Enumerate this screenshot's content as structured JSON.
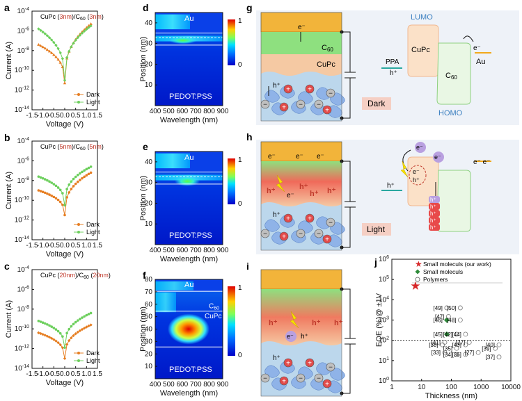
{
  "panel_labels": [
    "a",
    "b",
    "c",
    "d",
    "e",
    "f",
    "g",
    "h",
    "i",
    "j"
  ],
  "iv_panels": [
    {
      "id": "a",
      "title_pre": "CuPc (",
      "t1": "3nm",
      "title_mid": ")/C",
      "title_sub": "60",
      "title_mid2": " (",
      "t2": "3nm",
      "title_post": ")",
      "dark_min_log": -11.3,
      "dark_left_log": -7.4,
      "dark_right_log": -5.3,
      "light_min_log": -11.0,
      "light_left_log": -5.8,
      "light_right_log": -5.5
    },
    {
      "id": "b",
      "title_pre": "CuPc (",
      "t1": "5nm",
      "title_mid": ")/C",
      "title_sub": "60",
      "title_mid2": " (",
      "t2": "5nm",
      "title_post": ")",
      "dark_min_log": -11.5,
      "dark_left_log": -9.0,
      "dark_right_log": -7.2,
      "light_min_log": -10.5,
      "light_left_log": -7.6,
      "light_right_log": -6.6
    },
    {
      "id": "c",
      "title_pre": "CuPc (",
      "t1": "20nm",
      "title_mid": ")/C",
      "title_sub": "60",
      "title_mid2": " (",
      "t2": "20nm",
      "title_post": ")",
      "dark_min_log": -13.0,
      "dark_left_log": -10.4,
      "dark_right_log": -9.6,
      "light_min_log": -11.9,
      "light_left_log": -9.2,
      "light_right_log": -8.4
    }
  ],
  "iv_axes": {
    "xlabel": "Voltage (V)",
    "ylabel": "Current (A)",
    "xlim": [
      -1.5,
      1.5
    ],
    "ylim_log": [
      -14,
      -4
    ],
    "xticks": [
      "-1.5",
      "-1.0",
      "-0.5",
      "0.0",
      "0.5",
      "1.0",
      "1.5"
    ],
    "yticks": [
      "-4",
      "-6",
      "-8",
      "-10",
      "-12",
      "-14"
    ],
    "ybase": "10"
  },
  "legend": {
    "dark": "Dark",
    "light": "Light"
  },
  "colors": {
    "dark": "#e67e22",
    "light": "#6ccf5c",
    "accent_red": "#c0392b",
    "c60": "#8ee07f",
    "cupc": "#f5c9a3",
    "gold": "#f2b43a",
    "pedot": "#bcd7ec",
    "energy_peach": "#fbe1c8",
    "energy_green": "#e9f7e4"
  },
  "field_panels": [
    {
      "id": "d",
      "ylim": [
        0,
        45
      ],
      "yticks": [
        "10",
        "20",
        "30",
        "40"
      ],
      "gold": "Au",
      "bottom": "PEDOT:PSS",
      "c60": "",
      "cupc": ""
    },
    {
      "id": "e",
      "ylim": [
        0,
        45
      ],
      "yticks": [
        "10",
        "20",
        "30",
        "40"
      ],
      "gold": "Au",
      "bottom": "PEDOT:PSS",
      "c60": "",
      "cupc": ""
    },
    {
      "id": "f",
      "ylim": [
        0,
        80
      ],
      "yticks": [
        "10",
        "20",
        "30",
        "40",
        "50",
        "60",
        "70",
        "80"
      ],
      "gold": "Au",
      "bottom": "PEDOT:PSS",
      "c60": "C",
      "c60_sub": "60",
      "cupc": "CuPc"
    }
  ],
  "field_axes": {
    "xlabel": "Wavelength (nm)",
    "ylabel": "Position (nm)",
    "xticks": [
      "400",
      "500",
      "600",
      "700",
      "800",
      "900"
    ],
    "cbar_top": "1",
    "cbar_bottom": "0"
  },
  "schematic": {
    "electron": "e⁻",
    "hole": "h⁺",
    "c60": "C",
    "c60_sub": "60",
    "cupc": "CuPc",
    "lumo": "LUMO",
    "homo": "HOMO",
    "ppa": "PPA",
    "au": "Au",
    "dark": "Dark",
    "light": "Light",
    "plus": "+",
    "minus": "−",
    "electron_pair": "e⁻ e⁻"
  },
  "chart_data": {
    "type": "scatter",
    "title": "",
    "xlabel": "Thickness (nm)",
    "ylabel": "EQE (%)@ ±1V",
    "xscale": "log",
    "yscale": "log",
    "xlim": [
      1,
      10000
    ],
    "ylim": [
      1,
      1000000
    ],
    "xticks": [
      "1",
      "10",
      "100",
      "1000",
      "10000"
    ],
    "reference_line_y": 100,
    "legend": [
      "Small moleculs (our work)",
      "Small moleculs",
      "Polymers"
    ],
    "series": [
      {
        "name": "Small moleculs (our work)",
        "marker": "star",
        "color": "#d62728",
        "points": [
          {
            "x": 6,
            "y": 50000,
            "label": ""
          }
        ]
      },
      {
        "name": "Small moleculs",
        "marker": "diamond",
        "color": "#2e8b3a",
        "points": [
          {
            "x": 70,
            "y": 1000,
            "label": "[46]"
          },
          {
            "x": 70,
            "y": 200,
            "label": "[45]"
          }
        ]
      },
      {
        "name": "Polymers",
        "marker": "circle",
        "color": "#777777",
        "points": [
          {
            "x": 70,
            "y": 4000,
            "label": "[49]"
          },
          {
            "x": 200,
            "y": 4000,
            "label": "[50]"
          },
          {
            "x": 80,
            "y": 1500,
            "label": "[47]"
          },
          {
            "x": 200,
            "y": 1000,
            "label": "[48]"
          },
          {
            "x": 150,
            "y": 200,
            "label": "[42]"
          },
          {
            "x": 300,
            "y": 200,
            "label": "[44]"
          },
          {
            "x": 60,
            "y": 80,
            "label": "[41]"
          },
          {
            "x": 50,
            "y": 60,
            "label": "[38]"
          },
          {
            "x": 400,
            "y": 80,
            "label": "[27]"
          },
          {
            "x": 300,
            "y": 60,
            "label": "[43]"
          },
          {
            "x": 150,
            "y": 40,
            "label": "[35]"
          },
          {
            "x": 60,
            "y": 25,
            "label": "[33]"
          },
          {
            "x": 150,
            "y": 20,
            "label": "[34]"
          },
          {
            "x": 300,
            "y": 20,
            "label": "[36]"
          },
          {
            "x": 800,
            "y": 25,
            "label": "[27]"
          },
          {
            "x": 3000,
            "y": 40,
            "label": "[39]"
          },
          {
            "x": 4000,
            "y": 60,
            "label": "[40]"
          },
          {
            "x": 4000,
            "y": 15,
            "label": "[37]"
          }
        ]
      }
    ]
  }
}
